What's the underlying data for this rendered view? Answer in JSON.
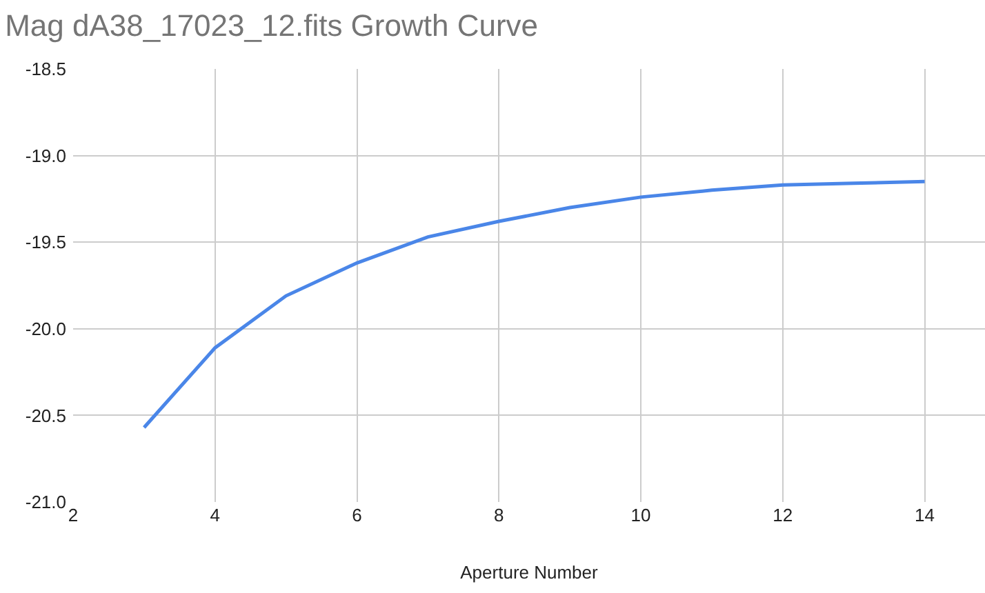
{
  "chart_data": {
    "type": "line",
    "title": "Mag dA38_17023_12.fits Growth Curve",
    "xlabel": "Aperture Number",
    "x": [
      3,
      4,
      5,
      6,
      7,
      8,
      9,
      10,
      11,
      12,
      13,
      14
    ],
    "series": [
      {
        "color": "#4a86e8",
        "values": [
          -20.57,
          -20.11,
          -19.81,
          -19.62,
          -19.47,
          -19.38,
          -19.3,
          -19.24,
          -19.2,
          -19.17,
          -19.16,
          -19.15
        ]
      }
    ],
    "xlim": [
      2,
      14.85
    ],
    "xticks": [
      2,
      4,
      6,
      8,
      10,
      12,
      14
    ],
    "ylim": [
      -21,
      -18.5
    ],
    "yticks": [
      {
        "value": -21,
        "label": "-21.0"
      },
      {
        "value": -20.5,
        "label": "-20.5"
      },
      {
        "value": -20,
        "label": "-20.0"
      },
      {
        "value": -19.5,
        "label": "-19.5"
      },
      {
        "value": -19,
        "label": "-19.0"
      },
      {
        "value": -18.5,
        "label": "-18.5"
      }
    ],
    "grid": true,
    "marker": "none",
    "line_style": "solid"
  }
}
